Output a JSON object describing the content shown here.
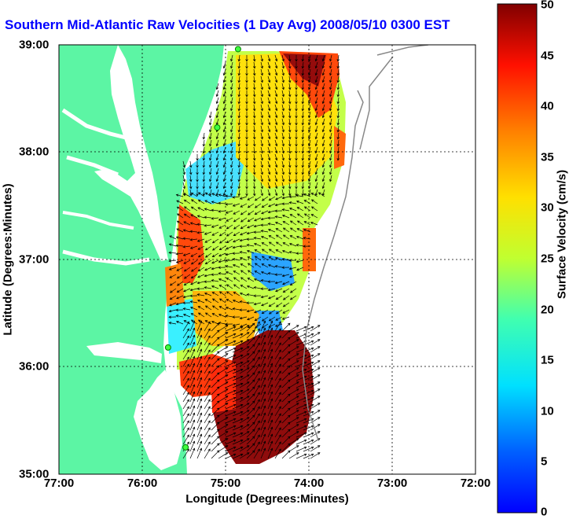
{
  "title": "Southern Mid-Atlantic Raw Velocities (1 Day Avg) 2008/05/10 0300 EST",
  "map": {
    "x_label": "Longitude (Degrees:Minutes)",
    "y_label": "Latitude (Degrees:Minutes)",
    "x_ticks": [
      "77:00",
      "76:00",
      "75:00",
      "74:00",
      "73:00",
      "72:00"
    ],
    "y_ticks": [
      "39:00",
      "38:00",
      "37:00",
      "36:00",
      "35:00"
    ],
    "lon_range": [
      -77,
      -72
    ],
    "lat_range": [
      35,
      39
    ],
    "land_color": "#5cf5a4",
    "ocean_color": "#ffffff",
    "grid": "dotted"
  },
  "colorbar": {
    "label": "Surface Velocity (cm/s)",
    "ticks": [
      "50",
      "45",
      "40",
      "35",
      "30",
      "25",
      "20",
      "15",
      "10",
      "5",
      "0"
    ],
    "range": [
      0,
      50
    ],
    "colormap": "jet"
  },
  "stations": [
    {
      "lon": -74.85,
      "lat": 38.96
    },
    {
      "lon": -75.1,
      "lat": 38.23
    },
    {
      "lon": -75.69,
      "lat": 36.18
    },
    {
      "lon": -75.48,
      "lat": 35.25
    }
  ]
}
